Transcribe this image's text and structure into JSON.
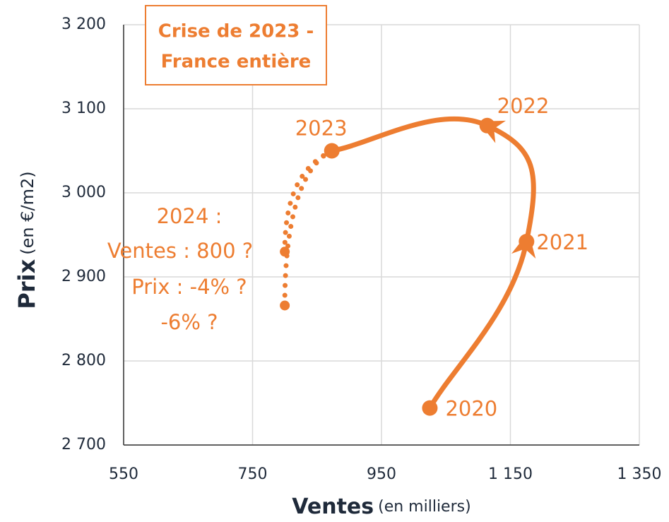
{
  "chart_data": {
    "type": "line",
    "smooth": true,
    "color": "#ed7d31",
    "title_lines": [
      "Crise de 2023 -",
      "France entière"
    ],
    "x_label": "Ventes",
    "x_label_unit": "(en milliers)",
    "y_label": "Prix",
    "y_label_unit": "(en €/m2)",
    "xlim": [
      550,
      1350
    ],
    "xticks": [
      550,
      750,
      950,
      {
        "value": 1150,
        "label": "1 150"
      },
      {
        "value": 1350,
        "label": "1 350"
      }
    ],
    "ylim": [
      2700,
      3200
    ],
    "yticks": [
      {
        "value": 2700,
        "label": "2 700"
      },
      {
        "value": 2800,
        "label": "2 800"
      },
      {
        "value": 2900,
        "label": "2 900"
      },
      {
        "value": 3000,
        "label": "3 000"
      },
      {
        "value": 3100,
        "label": "3 100"
      },
      {
        "value": 3200,
        "label": "3 200"
      }
    ],
    "grid": true,
    "series": [
      {
        "x": [
          1025,
          1175,
          1114,
          873
        ],
        "values": [
          2744,
          2942,
          3080,
          3050
        ],
        "labels": [
          "2020",
          "2021",
          "2022",
          "2023"
        ],
        "style": "solid"
      },
      {
        "x": [
          873,
          800
        ],
        "values": [
          3050,
          2930
        ],
        "style": "dotted"
      },
      {
        "x": [
          873,
          800
        ],
        "values": [
          3050,
          2866
        ],
        "style": "dotted"
      }
    ],
    "annotations": [
      "2024 :",
      "Ventes : 800 ?",
      "Prix : -4% ?",
      "-6% ?"
    ]
  }
}
